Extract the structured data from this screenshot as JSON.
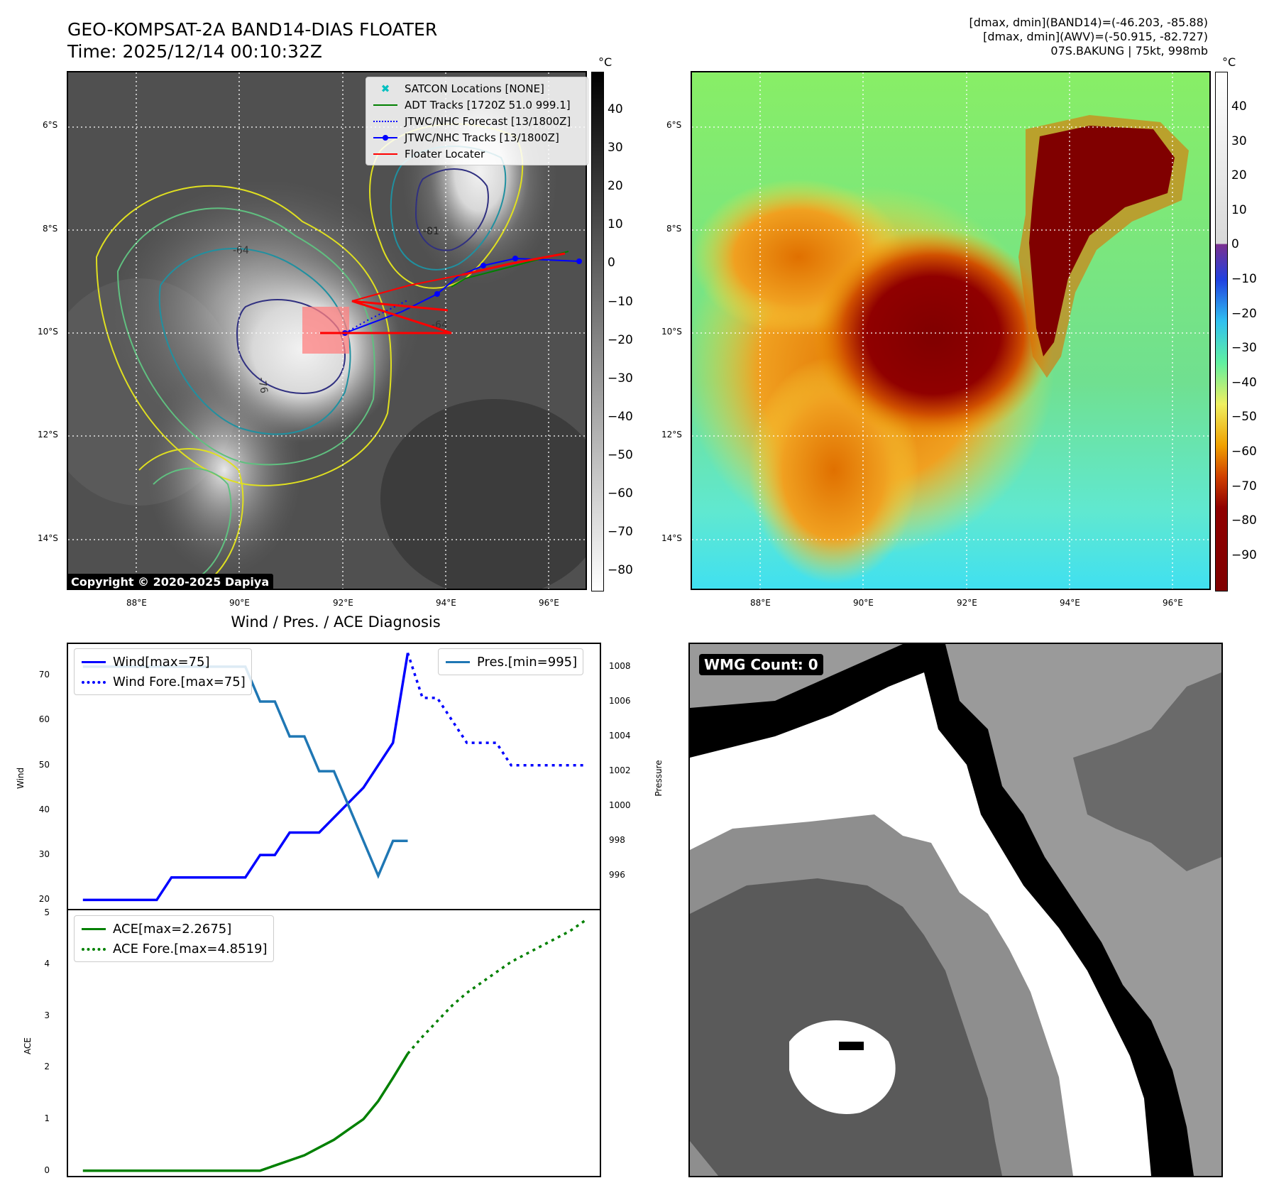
{
  "header": {
    "title_line1": "GEO-KOMPSAT-2A BAND14-DIAS FLOATER",
    "title_line2": "Time: 2025/12/14 00:10:32Z",
    "info_line1": "[dmax, dmin](BAND14)=(-46.203, -85.88)",
    "info_line2": "[dmax, dmin](AWV)=(-50.915, -82.727)",
    "info_line3": "07S.BAKUNG | 75kt, 998mb"
  },
  "map": {
    "lat_labels": [
      "6°S",
      "8°S",
      "10°S",
      "12°S",
      "14°S"
    ],
    "lon_labels": [
      "88°E",
      "90°E",
      "92°E",
      "94°E",
      "96°E"
    ],
    "legend": [
      {
        "label": "SATCON Locations [NONE]",
        "color": "#00c0c0",
        "symbol": "x"
      },
      {
        "label": "ADT Tracks [1720Z 51.0 999.1]",
        "color": "#008000",
        "symbol": "line"
      },
      {
        "label": "JTWC/NHC Forecast [13/1800Z]",
        "color": "#0000ff",
        "symbol": "dotted"
      },
      {
        "label": "JTWC/NHC Tracks [13/1800Z]",
        "color": "#0000ff",
        "symbol": "line-dot"
      },
      {
        "label": "Floater Locater",
        "color": "#ff0000",
        "symbol": "line"
      }
    ],
    "copyright": "Copyright © 2020-2025 Dapiya",
    "contour_labels": [
      "-81",
      "-76",
      "-64",
      "-64"
    ],
    "colorbar_unit": "°C",
    "colorbar_ticks_gray": [
      "40",
      "30",
      "20",
      "10",
      "0",
      "−10",
      "−20",
      "−30",
      "−40",
      "−50",
      "−60",
      "−70",
      "−80"
    ],
    "colorbar_ticks_color": [
      "40",
      "30",
      "20",
      "10",
      "0",
      "−10",
      "−20",
      "−30",
      "−40",
      "−50",
      "−60",
      "−70",
      "−80",
      "−90"
    ]
  },
  "diagnosis": {
    "title": "Wind / Pres. / ACE Diagnosis",
    "wind_ylabel": "Wind",
    "pres_ylabel": "Pressure",
    "ace_ylabel": "ACE",
    "legend_wind": "Wind[max=75]",
    "legend_wind_fore": "Wind Fore.[max=75]",
    "legend_pres": "Pres.[min=995]",
    "legend_ace": "ACE[max=2.2675]",
    "legend_ace_fore": "ACE Fore.[max=4.8519]",
    "wmg_label": "WMG Count: 0"
  },
  "chart_data": [
    {
      "type": "line",
      "title": "Wind / Pres. / ACE Diagnosis",
      "ylabel": "Wind",
      "ylim": [
        18,
        77
      ],
      "yticks": [
        20,
        30,
        40,
        50,
        60,
        70
      ],
      "xlim": [
        0,
        36
      ],
      "series": [
        {
          "name": "Wind[max=75]",
          "color": "#0000ff",
          "style": "solid",
          "x": [
            1,
            6,
            7,
            12,
            13,
            14,
            15,
            17,
            20,
            21,
            22,
            23
          ],
          "values": [
            20,
            20,
            25,
            25,
            30,
            30,
            35,
            35,
            45,
            50,
            55,
            75
          ]
        },
        {
          "name": "Wind Fore.[max=75]",
          "color": "#0000ff",
          "style": "dotted",
          "x": [
            23,
            24,
            25,
            26,
            27,
            28,
            29,
            30,
            31,
            32,
            33,
            34,
            35
          ],
          "values": [
            75,
            65,
            65,
            60,
            55,
            55,
            55,
            50,
            50,
            50,
            50,
            50,
            50
          ]
        }
      ]
    },
    {
      "type": "line",
      "ylabel": "Pressure",
      "ylim": [
        994.1,
        1009.3
      ],
      "yticks": [
        996,
        998,
        1000,
        1002,
        1004,
        1006,
        1008
      ],
      "xlim": [
        0,
        36
      ],
      "series": [
        {
          "name": "Pres.[min=995]",
          "color": "#1f77b4",
          "style": "solid",
          "x": [
            1,
            6,
            7,
            9,
            10,
            11,
            12,
            13,
            14,
            15,
            16,
            17,
            18,
            19,
            20,
            21,
            22,
            23
          ],
          "values": [
            1008,
            1008,
            1008,
            1008,
            1008,
            1008,
            1008,
            1006,
            1006,
            1004,
            1004,
            1002,
            1002,
            1000,
            998,
            996,
            998,
            998
          ]
        }
      ]
    },
    {
      "type": "line",
      "ylabel": "ACE",
      "ylim": [
        -0.1,
        5.05
      ],
      "yticks": [
        0,
        1,
        2,
        3,
        4,
        5
      ],
      "xlim": [
        0,
        36
      ],
      "series": [
        {
          "name": "ACE[max=2.2675]",
          "color": "#008000",
          "style": "solid",
          "x": [
            1,
            13,
            16,
            17,
            18,
            19,
            20,
            21,
            22,
            23
          ],
          "values": [
            0,
            0,
            0.3,
            0.45,
            0.6,
            0.8,
            1.0,
            1.35,
            1.8,
            2.27
          ]
        },
        {
          "name": "ACE Fore.[max=4.8519]",
          "color": "#008000",
          "style": "dotted",
          "x": [
            23,
            24,
            25,
            26,
            27,
            28,
            29,
            30,
            31,
            32,
            33,
            34,
            35
          ],
          "values": [
            2.27,
            2.6,
            2.9,
            3.2,
            3.45,
            3.65,
            3.85,
            4.05,
            4.2,
            4.35,
            4.5,
            4.65,
            4.85
          ]
        }
      ]
    }
  ]
}
